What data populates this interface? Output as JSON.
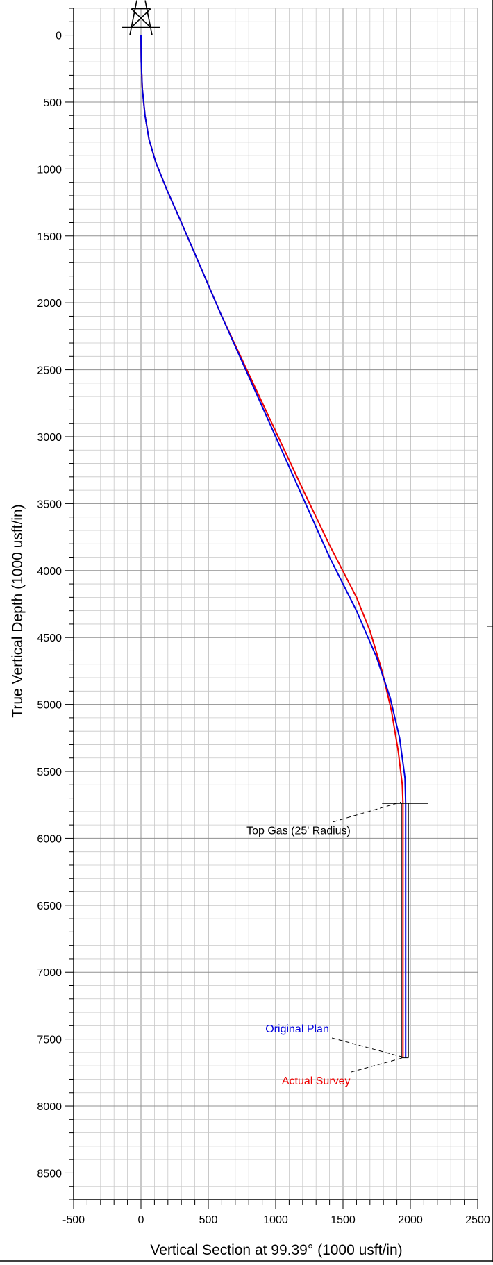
{
  "chart_data": {
    "type": "line",
    "title": "",
    "xlabel": "Vertical Section at 99.39° (1000 usft/in)",
    "ylabel": "True Vertical Depth (1000 usft/in)",
    "xlim": [
      -500,
      2500
    ],
    "ylim": [
      8700,
      -200
    ],
    "y_inverted": true,
    "grid": true,
    "x_ticks": [
      -500,
      0,
      500,
      1000,
      1500,
      2000,
      2500
    ],
    "y_ticks": [
      0,
      500,
      1000,
      1500,
      2000,
      2500,
      3000,
      3500,
      4000,
      4500,
      5000,
      5500,
      6000,
      6500,
      7000,
      7500,
      8000,
      8500
    ],
    "series": [
      {
        "name": "Original Plan",
        "color": "#0000dd",
        "x": [
          0,
          2,
          10,
          30,
          60,
          110,
          190,
          300,
          450,
          600,
          800,
          1000,
          1200,
          1400,
          1600,
          1750,
          1850,
          1920,
          1960,
          1965,
          1965
        ],
        "y": [
          0,
          200,
          400,
          600,
          780,
          950,
          1150,
          1400,
          1750,
          2100,
          2550,
          3000,
          3450,
          3900,
          4300,
          4650,
          4950,
          5250,
          5550,
          5740,
          7640
        ]
      },
      {
        "name": "Actual Survey",
        "color": "#ee0000",
        "x": [
          0,
          2,
          10,
          30,
          60,
          110,
          190,
          300,
          450,
          600,
          800,
          1000,
          1200,
          1400,
          1600,
          1700,
          1790,
          1860,
          1910,
          1940,
          1945,
          1945
        ],
        "y": [
          0,
          200,
          400,
          600,
          780,
          950,
          1150,
          1400,
          1750,
          2100,
          2530,
          2960,
          3390,
          3810,
          4200,
          4450,
          4750,
          5050,
          5350,
          5600,
          5740,
          7640
        ]
      }
    ],
    "annotations": [
      {
        "text": "Top Gas (25' Radius)",
        "color": "#000000",
        "label_x": 1170,
        "label_y": 5970,
        "target_x": 1930,
        "target_y": 5730
      },
      {
        "text": "Original Plan",
        "color": "#0000dd",
        "label_x": 1160,
        "label_y": 7450,
        "target_x": 1965,
        "target_y": 7640
      },
      {
        "text": "Actual Survey",
        "color": "#ee0000",
        "label_x": 1300,
        "label_y": 7840,
        "target_x": 1945,
        "target_y": 7640
      }
    ],
    "markers": [
      {
        "type": "rig",
        "x": 0,
        "y": 0
      },
      {
        "type": "target",
        "x": 1960,
        "y": 5740
      }
    ]
  }
}
